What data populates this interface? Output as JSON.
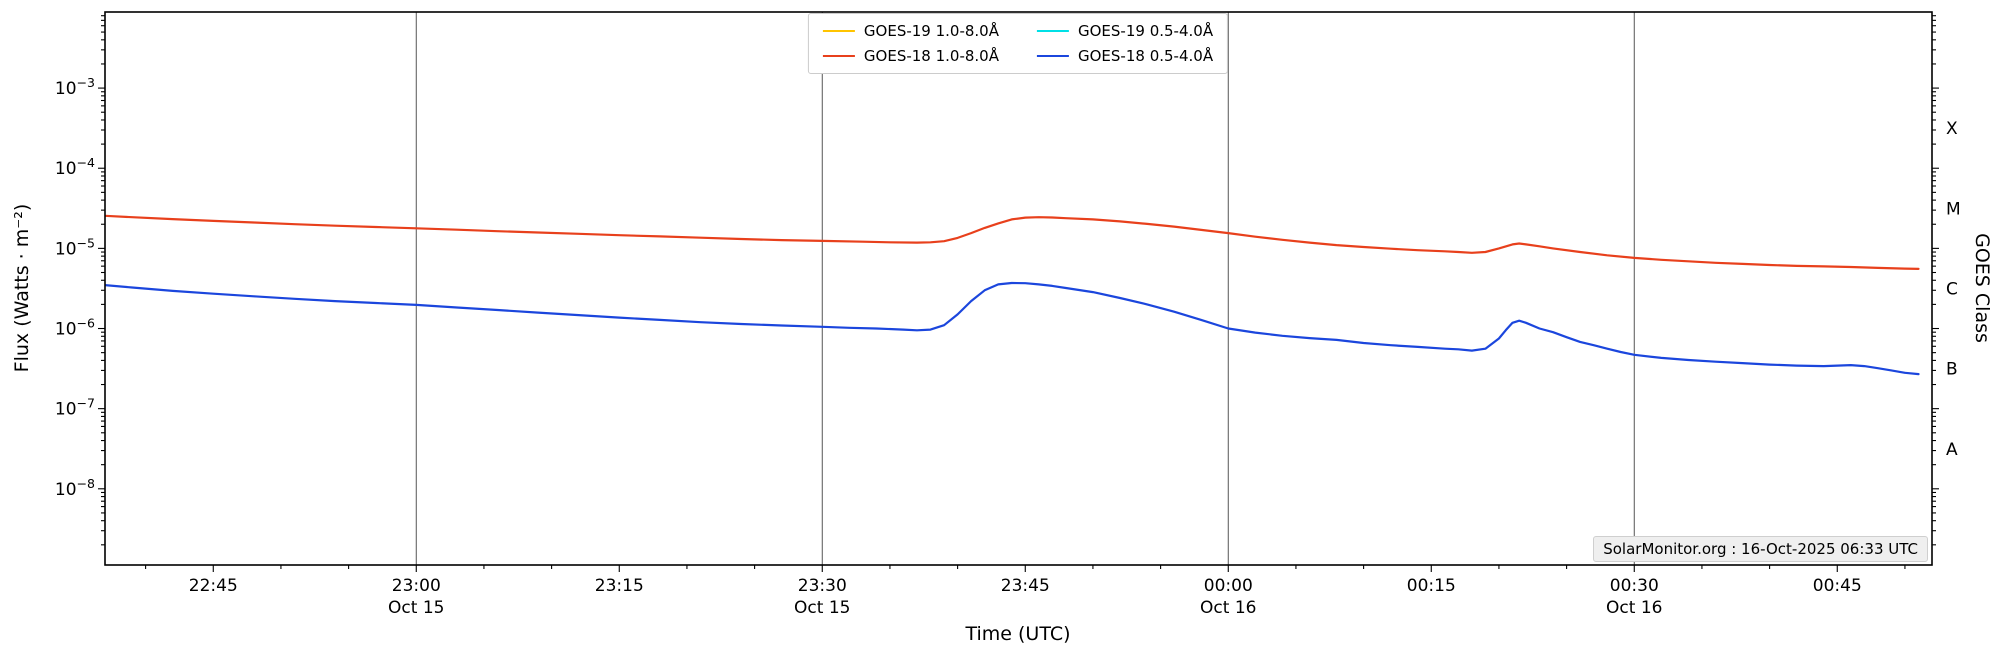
{
  "chart_data": {
    "type": "line",
    "title": "",
    "xlabel": "Time (UTC)",
    "ylabel": "Flux (Watts · m⁻²)",
    "ylabel_right": "GOES Class",
    "watermark": "SolarMonitor.org : 16-Oct-2025 06:33 UTC",
    "grid": "vertical-date-lines-only",
    "legend_position": "upper center",
    "x_axis": {
      "unit": "minutes after 22:30 UTC 15-Oct-2025",
      "min": 7,
      "max": 142,
      "minor_tick_step": 5,
      "gridlines": [
        30,
        60,
        90,
        120
      ],
      "major_ticks": [
        {
          "t": 15,
          "label": "22:45",
          "date": ""
        },
        {
          "t": 30,
          "label": "23:00",
          "date": "Oct 15"
        },
        {
          "t": 45,
          "label": "23:15",
          "date": ""
        },
        {
          "t": 60,
          "label": "23:30",
          "date": "Oct 15"
        },
        {
          "t": 75,
          "label": "23:45",
          "date": ""
        },
        {
          "t": 90,
          "label": "00:00",
          "date": "Oct 16"
        },
        {
          "t": 105,
          "label": "00:15",
          "date": ""
        },
        {
          "t": 120,
          "label": "00:30",
          "date": "Oct 16"
        },
        {
          "t": 135,
          "label": "00:45",
          "date": ""
        }
      ]
    },
    "y_axis": {
      "scale": "log",
      "min": 1.12e-09,
      "max": 0.0089,
      "major_tick_exponents": [
        -3,
        -4,
        -5,
        -6,
        -7,
        -8
      ]
    },
    "goes_classes": [
      {
        "label": "X",
        "flux": 0.000316
      },
      {
        "label": "M",
        "flux": 3.16e-05
      },
      {
        "label": "C",
        "flux": 3.16e-06
      },
      {
        "label": "B",
        "flux": 3.16e-07
      },
      {
        "label": "A",
        "flux": 3.16e-08
      }
    ],
    "series": [
      {
        "name": "GOES-19 1.0-8.0Å",
        "color": "#ffc400",
        "visible": false,
        "points": []
      },
      {
        "name": "GOES-18 1.0-8.0Å",
        "color": "#e8401c",
        "visible": true,
        "points": [
          [
            6,
            2.6e-05
          ],
          [
            9,
            2.45e-05
          ],
          [
            12,
            2.32e-05
          ],
          [
            15,
            2.2e-05
          ],
          [
            18,
            2.1e-05
          ],
          [
            21,
            2e-05
          ],
          [
            24,
            1.92e-05
          ],
          [
            27,
            1.85e-05
          ],
          [
            30,
            1.78e-05
          ],
          [
            33,
            1.71e-05
          ],
          [
            36,
            1.64e-05
          ],
          [
            39,
            1.58e-05
          ],
          [
            42,
            1.52e-05
          ],
          [
            45,
            1.46e-05
          ],
          [
            48,
            1.41e-05
          ],
          [
            51,
            1.36e-05
          ],
          [
            54,
            1.31e-05
          ],
          [
            57,
            1.27e-05
          ],
          [
            60,
            1.24e-05
          ],
          [
            63,
            1.21e-05
          ],
          [
            65,
            1.19e-05
          ],
          [
            67,
            1.18e-05
          ],
          [
            68,
            1.19e-05
          ],
          [
            69,
            1.23e-05
          ],
          [
            70,
            1.35e-05
          ],
          [
            71,
            1.55e-05
          ],
          [
            72,
            1.8e-05
          ],
          [
            73,
            2.05e-05
          ],
          [
            74,
            2.3e-05
          ],
          [
            75,
            2.42e-05
          ],
          [
            76,
            2.45e-05
          ],
          [
            77,
            2.43e-05
          ],
          [
            78,
            2.38e-05
          ],
          [
            80,
            2.3e-05
          ],
          [
            82,
            2.17e-05
          ],
          [
            84,
            2.02e-05
          ],
          [
            86,
            1.87e-05
          ],
          [
            88,
            1.7e-05
          ],
          [
            90,
            1.55e-05
          ],
          [
            92,
            1.4e-05
          ],
          [
            94,
            1.28e-05
          ],
          [
            96,
            1.18e-05
          ],
          [
            98,
            1.1e-05
          ],
          [
            100,
            1.04e-05
          ],
          [
            102,
            9.9e-06
          ],
          [
            104,
            9.5e-06
          ],
          [
            106,
            9.2e-06
          ],
          [
            107,
            9e-06
          ],
          [
            108,
            8.8e-06
          ],
          [
            109,
            9e-06
          ],
          [
            110,
            1e-05
          ],
          [
            111,
            1.12e-05
          ],
          [
            111.5,
            1.15e-05
          ],
          [
            112,
            1.12e-05
          ],
          [
            113,
            1.06e-05
          ],
          [
            114,
            1e-05
          ],
          [
            116,
            9e-06
          ],
          [
            118,
            8.2e-06
          ],
          [
            120,
            7.6e-06
          ],
          [
            122,
            7.2e-06
          ],
          [
            124,
            6.9e-06
          ],
          [
            126,
            6.6e-06
          ],
          [
            128,
            6.4e-06
          ],
          [
            130,
            6.2e-06
          ],
          [
            132,
            6.05e-06
          ],
          [
            134,
            5.95e-06
          ],
          [
            136,
            5.85e-06
          ],
          [
            138,
            5.7e-06
          ],
          [
            140,
            5.6e-06
          ],
          [
            141,
            5.55e-06
          ]
        ]
      },
      {
        "name": "GOES-19 0.5-4.0Å",
        "color": "#00e0e6",
        "visible": false,
        "points": []
      },
      {
        "name": "GOES-18 0.5-4.0Å",
        "color": "#1b46dd",
        "visible": true,
        "points": [
          [
            6,
            3.6e-06
          ],
          [
            9,
            3.25e-06
          ],
          [
            12,
            2.95e-06
          ],
          [
            15,
            2.72e-06
          ],
          [
            18,
            2.52e-06
          ],
          [
            21,
            2.35e-06
          ],
          [
            24,
            2.2e-06
          ],
          [
            27,
            2.08e-06
          ],
          [
            30,
            1.97e-06
          ],
          [
            33,
            1.83e-06
          ],
          [
            36,
            1.7e-06
          ],
          [
            39,
            1.58e-06
          ],
          [
            42,
            1.47e-06
          ],
          [
            45,
            1.37e-06
          ],
          [
            48,
            1.28e-06
          ],
          [
            51,
            1.2e-06
          ],
          [
            54,
            1.14e-06
          ],
          [
            57,
            1.09e-06
          ],
          [
            60,
            1.05e-06
          ],
          [
            62,
            1.02e-06
          ],
          [
            64,
            1e-06
          ],
          [
            66,
            9.7e-07
          ],
          [
            67,
            9.5e-07
          ],
          [
            68,
            9.7e-07
          ],
          [
            69,
            1.1e-06
          ],
          [
            70,
            1.5e-06
          ],
          [
            71,
            2.2e-06
          ],
          [
            72,
            3e-06
          ],
          [
            73,
            3.55e-06
          ],
          [
            74,
            3.7e-06
          ],
          [
            75,
            3.68e-06
          ],
          [
            76,
            3.55e-06
          ],
          [
            77,
            3.4e-06
          ],
          [
            78,
            3.2e-06
          ],
          [
            80,
            2.85e-06
          ],
          [
            82,
            2.4e-06
          ],
          [
            84,
            2e-06
          ],
          [
            86,
            1.62e-06
          ],
          [
            88,
            1.28e-06
          ],
          [
            90,
            1e-06
          ],
          [
            92,
            8.9e-07
          ],
          [
            94,
            8.1e-07
          ],
          [
            96,
            7.6e-07
          ],
          [
            98,
            7.2e-07
          ],
          [
            100,
            6.6e-07
          ],
          [
            102,
            6.2e-07
          ],
          [
            104,
            5.9e-07
          ],
          [
            106,
            5.6e-07
          ],
          [
            107,
            5.5e-07
          ],
          [
            108,
            5.3e-07
          ],
          [
            109,
            5.6e-07
          ],
          [
            110,
            7.5e-07
          ],
          [
            110.5,
            9.5e-07
          ],
          [
            111,
            1.18e-06
          ],
          [
            111.5,
            1.25e-06
          ],
          [
            112,
            1.18e-06
          ],
          [
            113,
            1e-06
          ],
          [
            114,
            9e-07
          ],
          [
            115,
            7.8e-07
          ],
          [
            116,
            6.8e-07
          ],
          [
            117,
            6.2e-07
          ],
          [
            118,
            5.6e-07
          ],
          [
            119,
            5.1e-07
          ],
          [
            120,
            4.7e-07
          ],
          [
            122,
            4.3e-07
          ],
          [
            124,
            4.05e-07
          ],
          [
            126,
            3.85e-07
          ],
          [
            128,
            3.7e-07
          ],
          [
            130,
            3.55e-07
          ],
          [
            132,
            3.45e-07
          ],
          [
            134,
            3.4e-07
          ],
          [
            135,
            3.45e-07
          ],
          [
            136,
            3.5e-07
          ],
          [
            137,
            3.4e-07
          ],
          [
            138,
            3.2e-07
          ],
          [
            139,
            3e-07
          ],
          [
            140,
            2.8e-07
          ],
          [
            141,
            2.7e-07
          ]
        ]
      }
    ],
    "style": {
      "gridline_color": "#555555",
      "spine_color": "#000000",
      "background": "#ffffff",
      "line_width": 2.2
    }
  }
}
